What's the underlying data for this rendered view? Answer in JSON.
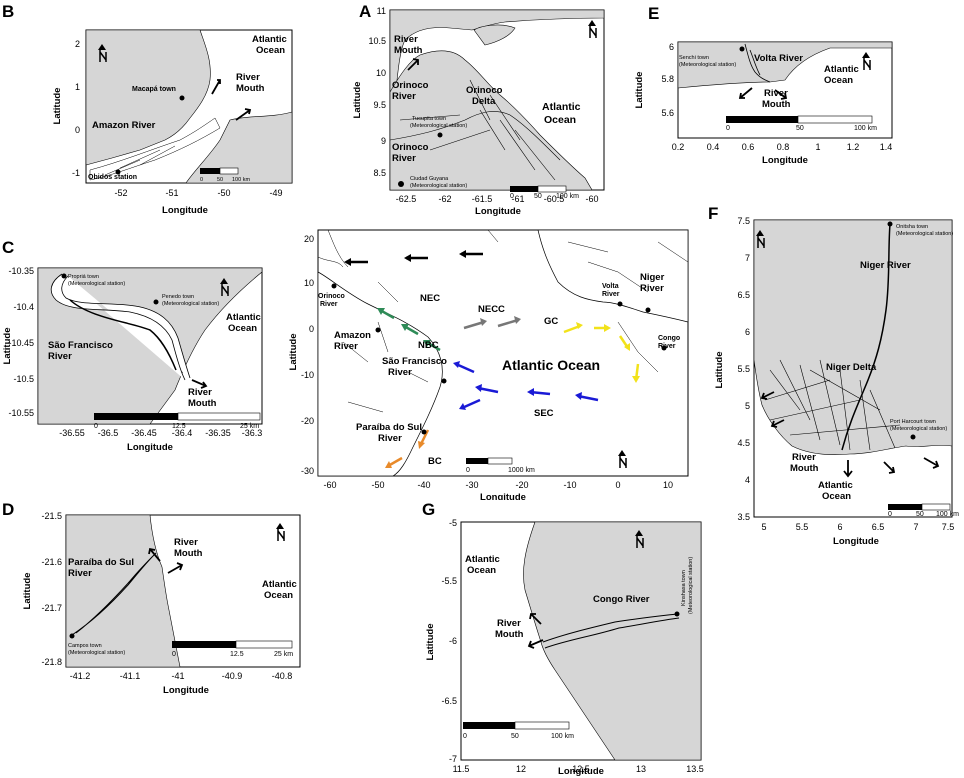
{
  "panels": {
    "A": {
      "letter": "A",
      "xlabel": "Longitude",
      "ylabel": "Latitude",
      "xticks": [
        "-62.5",
        "-62",
        "-61.5",
        "-61",
        "-60.5",
        "-60"
      ],
      "yticks": [
        "11",
        "10.5",
        "10",
        "9.5",
        "9",
        "8.5"
      ],
      "labels": {
        "river_mouth": "River Mouth",
        "orinoco_delta": "Orinoco Delta",
        "orinoco_river": "Orinoco River",
        "atlantic": "Atlantic Ocean",
        "tucupita": "Tucupita town (Meteorological station)",
        "ciudad_guyana": "Ciudad Guyana (Meteorological station)"
      },
      "scale": [
        "0",
        "50",
        "100 km"
      ]
    },
    "B": {
      "letter": "B",
      "xlabel": "Longitude",
      "ylabel": "Latitude",
      "xticks": [
        "-52",
        "-51",
        "-50",
        "-49"
      ],
      "yticks": [
        "2",
        "1",
        "0",
        "-1"
      ],
      "labels": {
        "atlantic": "Atlantic Ocean",
        "river_mouth": "River Mouth",
        "macapa": "Macapá town",
        "amazon": "Amazon River",
        "obidos": "Obidos station"
      },
      "scale": [
        "0",
        "50",
        "100 km"
      ]
    },
    "C": {
      "letter": "C",
      "xlabel": "Longitude",
      "ylabel": "Latitude",
      "xticks": [
        "-36.55",
        "-36.5",
        "-36.45",
        "-36.4",
        "-36.35",
        "-36.3"
      ],
      "yticks": [
        "-10.35",
        "-10.4",
        "-10.45",
        "-10.5",
        "-10.55"
      ],
      "labels": {
        "propria": "Propriá town (Meteorological station)",
        "penedo": "Penedo town (Meteorological station)",
        "atlantic": "Atlantic Ocean",
        "sao_francisco": "São Francisco River",
        "river_mouth": "River Mouth"
      },
      "scale": [
        "0",
        "12.5",
        "25 km"
      ]
    },
    "D": {
      "letter": "D",
      "xlabel": "Longitude",
      "ylabel": "Latitude",
      "xticks": [
        "-41.2",
        "-41.1",
        "-41",
        "-40.9",
        "-40.8"
      ],
      "yticks": [
        "-21.5",
        "-21.6",
        "-21.7",
        "-21.8"
      ],
      "labels": {
        "river_mouth": "River Mouth",
        "paraiba": "Paraíba do Sul River",
        "atlantic": "Atlantic Ocean",
        "campos": "Campos town (Meteorological station)"
      },
      "scale": [
        "0",
        "12.5",
        "25 km"
      ]
    },
    "E": {
      "letter": "E",
      "xlabel": "Longitude",
      "ylabel": "Latitude",
      "xticks": [
        "0.2",
        "0.4",
        "0.6",
        "0.8",
        "1",
        "1.2",
        "1.4"
      ],
      "yticks": [
        "6",
        "5.8",
        "5.6"
      ],
      "labels": {
        "senchi": "Senchi town (Meteorological station)",
        "volta": "Volta River",
        "atlantic": "Atlantic Ocean",
        "river_mouth": "River Mouth"
      },
      "scale": [
        "0",
        "50",
        "100 km"
      ]
    },
    "F": {
      "letter": "F",
      "xlabel": "Longitude",
      "ylabel": "Latitude",
      "xticks": [
        "5",
        "5.5",
        "6",
        "6.5",
        "7",
        "7.5"
      ],
      "yticks": [
        "7.5",
        "7",
        "6.5",
        "6",
        "5.5",
        "5",
        "4.5",
        "4",
        "3.5"
      ],
      "labels": {
        "onitsha": "Onitsha town (Meteorological station)",
        "niger": "Niger River",
        "niger_delta": "Niger Delta",
        "port_harcourt": "Port Harcourt town (Meteorological station)",
        "river_mouth": "River Mouth",
        "atlantic": "Atlantic Ocean"
      },
      "scale": [
        "0",
        "50",
        "100 km"
      ]
    },
    "G": {
      "letter": "G",
      "xlabel": "Longitude",
      "ylabel": "Latitude",
      "xticks": [
        "11.5",
        "12",
        "12.5",
        "13",
        "13.5"
      ],
      "yticks": [
        "-5",
        "-5.5",
        "-6",
        "-6.5",
        "-7"
      ],
      "labels": {
        "atlantic": "Atlantic Ocean",
        "congo": "Congo River",
        "kinshasa": "Kinshasa town (Meteorological station)",
        "river_mouth": "River Mouth"
      },
      "scale": [
        "0",
        "50",
        "100 km"
      ]
    },
    "center": {
      "xlabel": "Longitude",
      "ylabel": "Latitude",
      "xticks": [
        "-60",
        "-50",
        "-40",
        "-30",
        "-20",
        "-10",
        "0",
        "10"
      ],
      "yticks": [
        "20",
        "10",
        "0",
        "-10",
        "-20",
        "-30"
      ],
      "labels": {
        "nec": "NEC",
        "necc": "NECC",
        "nbc": "NBC",
        "gc": "GC",
        "sec": "SEC",
        "bc": "BC",
        "atlantic": "Atlantic Ocean",
        "orinoco": "Orinoco River",
        "amazon": "Amazon River",
        "sao_francisco": "São Francisco River",
        "paraiba": "Paraíba do Sul River",
        "volta": "Volta River",
        "niger": "Niger River",
        "congo": "Congo River"
      },
      "scale": [
        "0",
        "1000 km"
      ]
    }
  },
  "colors": {
    "land": "#d6d6d6",
    "nbc": "#2e8b57",
    "necc": "#777777",
    "gc": "#f2e21a",
    "sec": "#1a1ad6",
    "bc": "#e88a2a",
    "nec": "#000000"
  },
  "north_icon": "north-arrow-icon"
}
